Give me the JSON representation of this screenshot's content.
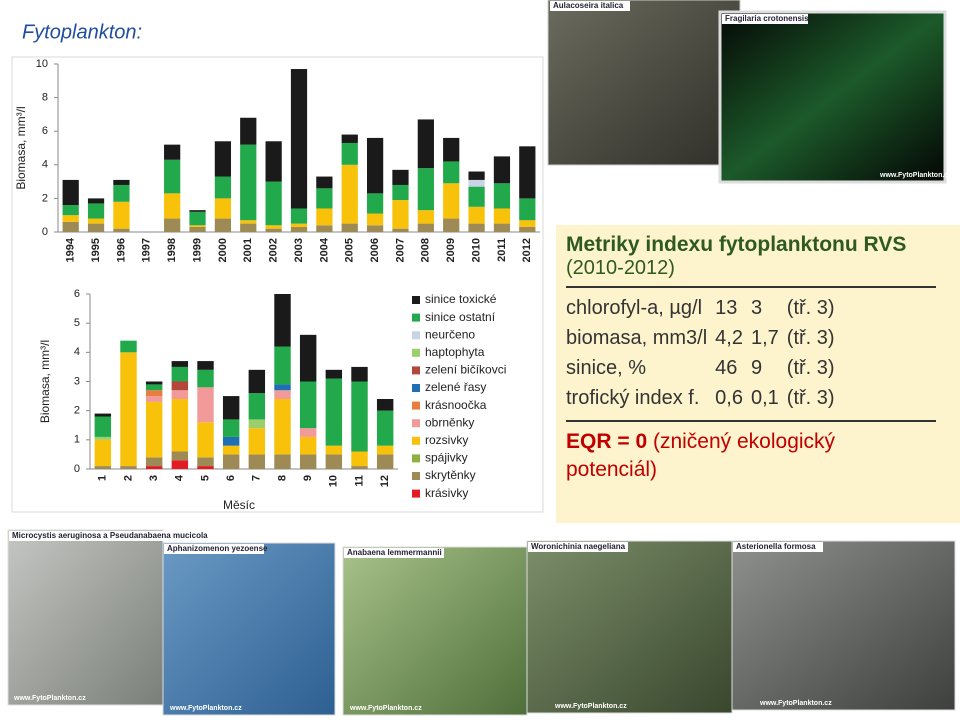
{
  "slide_title": "Fytoplankton:",
  "chart_data": [
    {
      "type": "bar",
      "stacked": true,
      "ylabel": "Biomasa, mm³/l",
      "categories": [
        "1994",
        "1995",
        "1996",
        "1997",
        "1998",
        "1999",
        "2000",
        "2001",
        "2002",
        "2003",
        "2004",
        "2005",
        "2006",
        "2007",
        "2008",
        "2009",
        "2010",
        "2011",
        "2012"
      ],
      "ylim": [
        0,
        10
      ],
      "yticks": [
        0,
        2,
        4,
        6,
        8,
        10
      ],
      "series": [
        {
          "color": "#1a1a1a",
          "values": [
            1.5,
            0.3,
            0.3,
            0,
            0.9,
            0.1,
            2.1,
            1.6,
            2.4,
            8.3,
            0.7,
            0.5,
            3.3,
            0.9,
            2.9,
            1.4,
            0.5,
            1.6,
            3.1
          ]
        },
        {
          "color": "#c9d3e6",
          "values": [
            0,
            0,
            0,
            0,
            0,
            0,
            0,
            0,
            0,
            0,
            0,
            0,
            0,
            0,
            0,
            0,
            0.4,
            0,
            0
          ]
        },
        {
          "color": "#22a94b",
          "values": [
            0.6,
            0.9,
            1.0,
            0,
            2.0,
            0.8,
            1.3,
            4.5,
            2.6,
            0.9,
            1.2,
            1.3,
            1.2,
            0.9,
            2.5,
            1.3,
            1.2,
            1.5,
            1.3
          ]
        },
        {
          "color": "#f9c20a",
          "values": [
            0.4,
            0.3,
            1.6,
            0,
            1.5,
            0.1,
            1.2,
            0.2,
            0.2,
            0.2,
            1.0,
            3.5,
            0.7,
            1.7,
            0.8,
            2.1,
            1.0,
            0.9,
            0.4
          ]
        },
        {
          "color": "#9e8a55",
          "values": [
            0.6,
            0.5,
            0.2,
            0,
            0.8,
            0.3,
            0.8,
            0.5,
            0.2,
            0.3,
            0.4,
            0.5,
            0.4,
            0.2,
            0.5,
            0.8,
            0.5,
            0.5,
            0.3
          ]
        }
      ]
    },
    {
      "type": "bar",
      "stacked": true,
      "ylabel": "Biomasa, mm³/l",
      "xlabel": "Měsíc",
      "categories": [
        "1",
        "2",
        "3",
        "4",
        "5",
        "6",
        "7",
        "8",
        "9",
        "10",
        "11",
        "12"
      ],
      "ylim": [
        0,
        6
      ],
      "yticks": [
        0,
        1,
        2,
        3,
        4,
        5,
        6
      ],
      "legend": "right",
      "series": [
        {
          "name": "sinice toxické",
          "color": "#1a1a1a",
          "values": [
            0.1,
            0,
            0.1,
            0.2,
            0.3,
            0.8,
            0.8,
            1.8,
            1.6,
            0.3,
            0.5,
            0.4
          ]
        },
        {
          "name": "sinice ostatní",
          "color": "#22a94b",
          "values": [
            0.7,
            0.4,
            0.2,
            0.5,
            0.6,
            0.6,
            0.9,
            1.3,
            1.6,
            2.3,
            2.4,
            1.2
          ]
        },
        {
          "name": "neurčeno",
          "color": "#c9d3e6",
          "values": [
            0,
            0,
            0,
            0,
            0,
            0,
            0,
            0,
            0,
            0,
            0,
            0
          ]
        },
        {
          "name": "haptophyta",
          "color": "#9ccf6b",
          "values": [
            0.1,
            0,
            0,
            0,
            0,
            0,
            0.3,
            0,
            0,
            0,
            0,
            0
          ]
        },
        {
          "name": "zelení bičíkovci",
          "color": "#b5473a",
          "values": [
            0,
            0,
            0,
            0.3,
            0,
            0,
            0,
            0,
            0,
            0,
            0,
            0
          ]
        },
        {
          "name": "zelené řasy",
          "color": "#1f6fb5",
          "values": [
            0,
            0,
            0,
            0,
            0,
            0.3,
            0,
            0.2,
            0,
            0,
            0,
            0
          ]
        },
        {
          "name": "krásnoočka",
          "color": "#e87d3e",
          "values": [
            0,
            0,
            0.2,
            0,
            0,
            0,
            0,
            0,
            0,
            0,
            0,
            0
          ]
        },
        {
          "name": "obrněnky",
          "color": "#f29a9a",
          "values": [
            0,
            0,
            0.2,
            0.3,
            1.2,
            0,
            0,
            0.3,
            0.3,
            0,
            0,
            0
          ]
        },
        {
          "name": "rozsivky",
          "color": "#f9c20a",
          "values": [
            0.9,
            3.9,
            1.9,
            1.8,
            1.2,
            0.3,
            0.9,
            1.9,
            0.6,
            0.3,
            0.5,
            0.3
          ]
        },
        {
          "name": "spájivky",
          "color": "#8db040",
          "values": [
            0,
            0,
            0,
            0,
            0,
            0,
            0,
            0,
            0,
            0,
            0,
            0
          ]
        },
        {
          "name": "skrytěnky",
          "color": "#9e8a55",
          "values": [
            0.1,
            0.1,
            0.3,
            0.3,
            0.3,
            0.5,
            0.5,
            0.5,
            0.5,
            0.5,
            0.1,
            0.5
          ]
        },
        {
          "name": "krásivky",
          "color": "#e31b23",
          "values": [
            0,
            0,
            0.1,
            0.3,
            0.1,
            0,
            0,
            0,
            0,
            0,
            0,
            0
          ]
        }
      ]
    }
  ],
  "metrics": {
    "title": "Metriky indexu fytoplanktonu RVS",
    "period": "(2010-2012)",
    "rows": [
      [
        "chlorofyl-a, µg/l",
        "13",
        "3",
        "(tř. 3)"
      ],
      [
        "biomasa, mm3/l",
        "4,2",
        "1,7",
        "(tř. 3)"
      ],
      [
        "sinice, %",
        "46",
        "9",
        "(tř. 3)"
      ],
      [
        "trofický index f.",
        "0,6",
        "0,1",
        "(tř. 3)"
      ]
    ],
    "eqr": "EQR = 0",
    "eqr_text": "(zničený ekologický potenciál)"
  },
  "photos": {
    "watermark": "www.FytoPlankton.cz",
    "captions": [
      "Aulacoseira italica",
      "Fragilaria crotonensis",
      "Microcystis aeruginosa a Pseudanabaena mucicola",
      "Aphanizomenon yezoense",
      "Anabaena lemmermannii",
      "Woronichinia naegeliana",
      "Asterionella formosa"
    ]
  }
}
